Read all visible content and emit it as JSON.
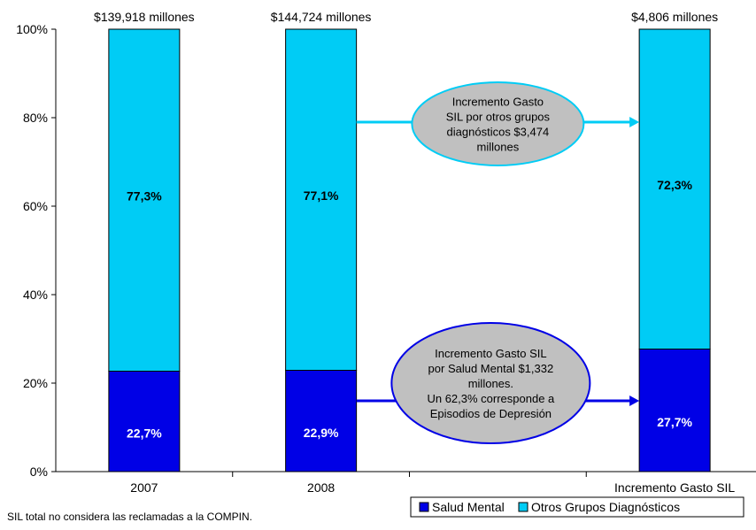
{
  "chart_data": {
    "type": "bar",
    "stacked": true,
    "categories": [
      "2007",
      "2008",
      "",
      "Incremento Gasto SIL"
    ],
    "series": [
      {
        "name": "Salud Mental",
        "color": "#0000E6",
        "values": [
          22.7,
          22.9,
          null,
          27.7
        ],
        "labels": [
          "22,7%",
          "22,9%",
          "",
          "27,7%"
        ]
      },
      {
        "name": "Otros Grupos Diagnósticos",
        "color": "#00CCF5",
        "values": [
          77.3,
          77.1,
          null,
          72.3
        ],
        "labels": [
          "77,3%",
          "77,1%",
          "",
          "72,3%"
        ]
      }
    ],
    "totals": [
      "$139,918 millones",
      "$144,724 millones",
      "",
      "$4,806 millones"
    ],
    "y_ticks": [
      "0%",
      "20%",
      "40%",
      "60%",
      "80%",
      "100%"
    ],
    "ylim": [
      0,
      100
    ],
    "legend_position": "bottom-right",
    "annotations": [
      {
        "series": "Otros Grupos Diagnósticos",
        "anchor_value": 79,
        "lines": [
          "Incremento Gasto",
          "SIL por otros grupos",
          "diagnósticos $3,474",
          "millones"
        ]
      },
      {
        "series": "Salud Mental",
        "anchor_value": 16,
        "lines": [
          "Incremento Gasto SIL",
          "por Salud Mental $1,332",
          "millones.",
          "Un 62,3% corresponde a",
          "Episodios de Depresión"
        ]
      }
    ]
  },
  "footnote": "SIL total no considera las reclamadas a la COMPIN."
}
